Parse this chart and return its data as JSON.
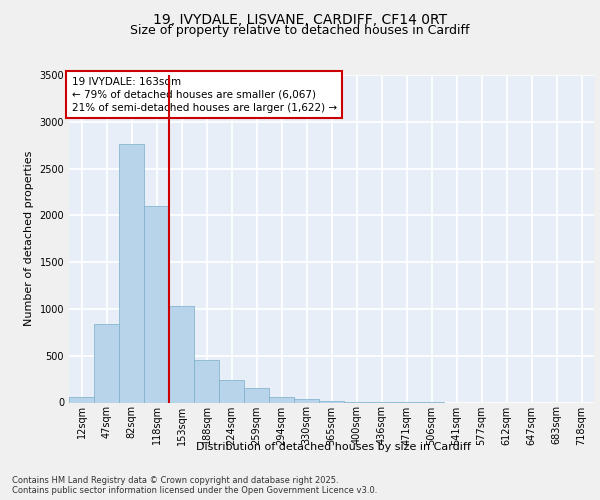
{
  "title_line1": "19, IVYDALE, LISVANE, CARDIFF, CF14 0RT",
  "title_line2": "Size of property relative to detached houses in Cardiff",
  "xlabel": "Distribution of detached houses by size in Cardiff",
  "ylabel": "Number of detached properties",
  "bar_labels": [
    "12sqm",
    "47sqm",
    "82sqm",
    "118sqm",
    "153sqm",
    "188sqm",
    "224sqm",
    "259sqm",
    "294sqm",
    "330sqm",
    "365sqm",
    "400sqm",
    "436sqm",
    "471sqm",
    "506sqm",
    "541sqm",
    "577sqm",
    "612sqm",
    "647sqm",
    "683sqm",
    "718sqm"
  ],
  "bar_values": [
    55,
    840,
    2760,
    2100,
    1030,
    450,
    245,
    155,
    60,
    35,
    15,
    10,
    5,
    2,
    1,
    0,
    0,
    0,
    0,
    0,
    0
  ],
  "bar_color": "#b8d4ea",
  "bar_edge_color": "#7aaec8",
  "vline_x_index": 4,
  "vline_color": "#cc0000",
  "annotation_text": "19 IVYDALE: 163sqm\n← 79% of detached houses are smaller (6,067)\n21% of semi-detached houses are larger (1,622) →",
  "annotation_box_color": "#ffffff",
  "annotation_box_edge": "#cc0000",
  "ylim": [
    0,
    3500
  ],
  "yticks": [
    0,
    500,
    1000,
    1500,
    2000,
    2500,
    3000,
    3500
  ],
  "footer_text": "Contains HM Land Registry data © Crown copyright and database right 2025.\nContains public sector information licensed under the Open Government Licence v3.0.",
  "bg_color": "#e8eef8",
  "grid_color": "#ffffff",
  "fig_bg_color": "#f0f0f0",
  "title_fontsize": 10,
  "subtitle_fontsize": 9,
  "ylabel_fontsize": 8,
  "xlabel_fontsize": 8,
  "tick_fontsize": 7,
  "annotation_fontsize": 7.5,
  "footer_fontsize": 6
}
